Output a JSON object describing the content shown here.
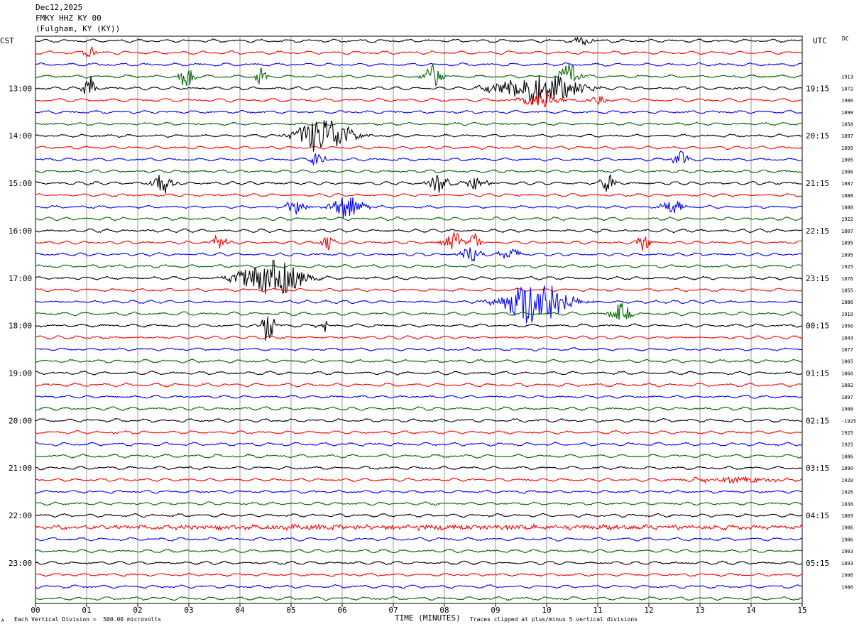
{
  "header": {
    "date": "Dec12,2025",
    "station": "FMKY HHZ KY 00",
    "location": "(Fulgham, KY (KY))"
  },
  "axes": {
    "left_title": "CST",
    "right_title": "UTC",
    "right_col_title": "DC",
    "xlabel": "TIME (MINUTES)"
  },
  "footer": {
    "scale": "Each Vertical Division =  500.00 microvolts",
    "clip": "Traces clipped at plus/minus 5 vertical divisions",
    "mark": "A"
  },
  "colors": {
    "cycle": [
      "#000000",
      "#ff0000",
      "#0000ff",
      "#006400"
    ],
    "grid": "#808080"
  },
  "chart_data": {
    "type": "line",
    "title": "",
    "x_ticks": [
      "00",
      "01",
      "02",
      "03",
      "04",
      "05",
      "06",
      "07",
      "08",
      "09",
      "10",
      "11",
      "12",
      "13",
      "14",
      "15"
    ],
    "xlim": [
      0,
      15
    ],
    "rows_per_hour": 4,
    "row_count": 48,
    "cst_hour_labels": [
      "13:00",
      "14:00",
      "15:00",
      "16:00",
      "17:00",
      "18:00",
      "19:00",
      "20:00",
      "21:00",
      "22:00",
      "23:00"
    ],
    "utc_hour_labels": [
      "19:15",
      "20:15",
      "21:15",
      "22:15",
      "23:15",
      "00:15",
      "01:15",
      "02:15",
      "03:15",
      "04:15",
      "05:15"
    ],
    "dc_offsets": [
      "1913",
      "1872",
      "1906",
      "1898",
      "1858",
      "1897",
      "1895",
      "1905",
      "1906",
      "1887",
      "1888",
      "1888",
      "1922",
      "1807",
      "1895",
      "1895",
      "1925",
      "1876",
      "1855",
      "1886",
      "1910",
      "1950",
      "1843",
      "1877",
      "1865",
      "1860",
      "1882",
      "1897",
      "1908",
      "-1925",
      "1925",
      "1925",
      "1886",
      "1890",
      "1920",
      "1926",
      "1838",
      "1869",
      "1906",
      "1906",
      "1903",
      "1893",
      "1906",
      "1986"
    ],
    "events": [
      {
        "row": 0,
        "minute": 10.7,
        "amp": 6,
        "dur": 0.3
      },
      {
        "row": 4,
        "minute": 1.05,
        "amp": 20,
        "dur": 0.15
      },
      {
        "row": 1,
        "minute": 1.05,
        "amp": 12,
        "dur": 0.15
      },
      {
        "row": 3,
        "minute": 2.95,
        "amp": 18,
        "dur": 0.2
      },
      {
        "row": 3,
        "minute": 4.4,
        "amp": 16,
        "dur": 0.15
      },
      {
        "row": 3,
        "minute": 7.75,
        "amp": 18,
        "dur": 0.25
      },
      {
        "row": 3,
        "minute": 10.45,
        "amp": 18,
        "dur": 0.3
      },
      {
        "row": 4,
        "minute": 9.85,
        "amp": 22,
        "dur": 1.2
      },
      {
        "row": 5,
        "minute": 9.9,
        "amp": 10,
        "dur": 0.6
      },
      {
        "row": 5,
        "minute": 11.0,
        "amp": 7,
        "dur": 0.3
      },
      {
        "row": 8,
        "minute": 5.65,
        "amp": 26,
        "dur": 0.8
      },
      {
        "row": 10,
        "minute": 5.55,
        "amp": 16,
        "dur": 0.2
      },
      {
        "row": 10,
        "minute": 12.6,
        "amp": 14,
        "dur": 0.2
      },
      {
        "row": 12,
        "minute": 2.5,
        "amp": 14,
        "dur": 0.3
      },
      {
        "row": 12,
        "minute": 7.9,
        "amp": 14,
        "dur": 0.3
      },
      {
        "row": 12,
        "minute": 8.65,
        "amp": 10,
        "dur": 0.3
      },
      {
        "row": 12,
        "minute": 11.2,
        "amp": 14,
        "dur": 0.2
      },
      {
        "row": 14,
        "minute": 5.1,
        "amp": 10,
        "dur": 0.3
      },
      {
        "row": 14,
        "minute": 6.1,
        "amp": 16,
        "dur": 0.5
      },
      {
        "row": 14,
        "minute": 12.45,
        "amp": 12,
        "dur": 0.3
      },
      {
        "row": 17,
        "minute": 3.6,
        "amp": 14,
        "dur": 0.2
      },
      {
        "row": 17,
        "minute": 5.7,
        "amp": 12,
        "dur": 0.2
      },
      {
        "row": 17,
        "minute": 8.2,
        "amp": 14,
        "dur": 0.3
      },
      {
        "row": 17,
        "minute": 8.6,
        "amp": 12,
        "dur": 0.2
      },
      {
        "row": 17,
        "minute": 11.9,
        "amp": 12,
        "dur": 0.2
      },
      {
        "row": 18,
        "minute": 8.5,
        "amp": 12,
        "dur": 0.3
      },
      {
        "row": 18,
        "minute": 9.3,
        "amp": 8,
        "dur": 0.3
      },
      {
        "row": 20,
        "minute": 4.6,
        "amp": 28,
        "dur": 0.9
      },
      {
        "row": 22,
        "minute": 9.8,
        "amp": 34,
        "dur": 0.9
      },
      {
        "row": 23,
        "minute": 11.45,
        "amp": 14,
        "dur": 0.3
      },
      {
        "row": 24,
        "minute": 4.55,
        "amp": 24,
        "dur": 0.2
      },
      {
        "row": 24,
        "minute": 5.65,
        "amp": 10,
        "dur": 0.2
      },
      {
        "row": 37,
        "minute": 13.6,
        "amp": 4,
        "dur": 1.4
      },
      {
        "row": 41,
        "minute": 7.5,
        "amp": 3,
        "dur": 15
      }
    ]
  }
}
